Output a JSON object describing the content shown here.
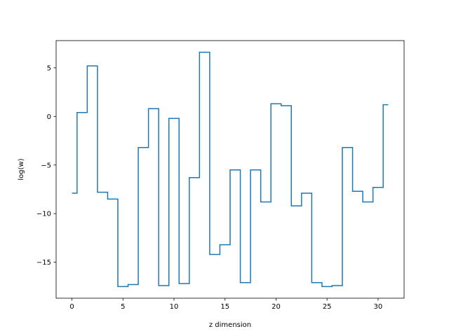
{
  "chart_data": {
    "type": "line",
    "drawstyle": "steps-mid",
    "xlabel": "z dimension",
    "ylabel": "log(w)",
    "xlim": [
      -1.55,
      32.55
    ],
    "ylim": [
      -18.7,
      7.8
    ],
    "xticks": [
      0,
      5,
      10,
      15,
      20,
      25,
      30
    ],
    "xtick_labels": [
      "0",
      "5",
      "10",
      "15",
      "20",
      "25",
      "30"
    ],
    "yticks": [
      -15,
      -10,
      -5,
      0,
      5
    ],
    "ytick_labels": [
      "−15",
      "−10",
      "−5",
      "0",
      "5"
    ],
    "grid": false,
    "series": [
      {
        "color": "#1f77b4",
        "x": [
          0,
          1,
          2,
          3,
          4,
          5,
          6,
          7,
          8,
          9,
          10,
          11,
          12,
          13,
          14,
          15,
          16,
          17,
          18,
          19,
          20,
          21,
          22,
          23,
          24,
          25,
          26,
          27,
          28,
          29,
          30,
          31
        ],
        "y": [
          -7.9,
          0.4,
          5.2,
          -7.8,
          -8.5,
          -17.5,
          -17.3,
          -3.2,
          0.8,
          -17.4,
          -0.2,
          -17.2,
          -6.3,
          6.6,
          -14.2,
          -13.2,
          -5.5,
          -17.1,
          -5.5,
          -8.8,
          1.3,
          1.1,
          -9.2,
          -7.9,
          -17.1,
          -17.5,
          -17.4,
          -3.2,
          -7.7,
          -8.8,
          -7.3,
          1.2
        ]
      }
    ]
  }
}
